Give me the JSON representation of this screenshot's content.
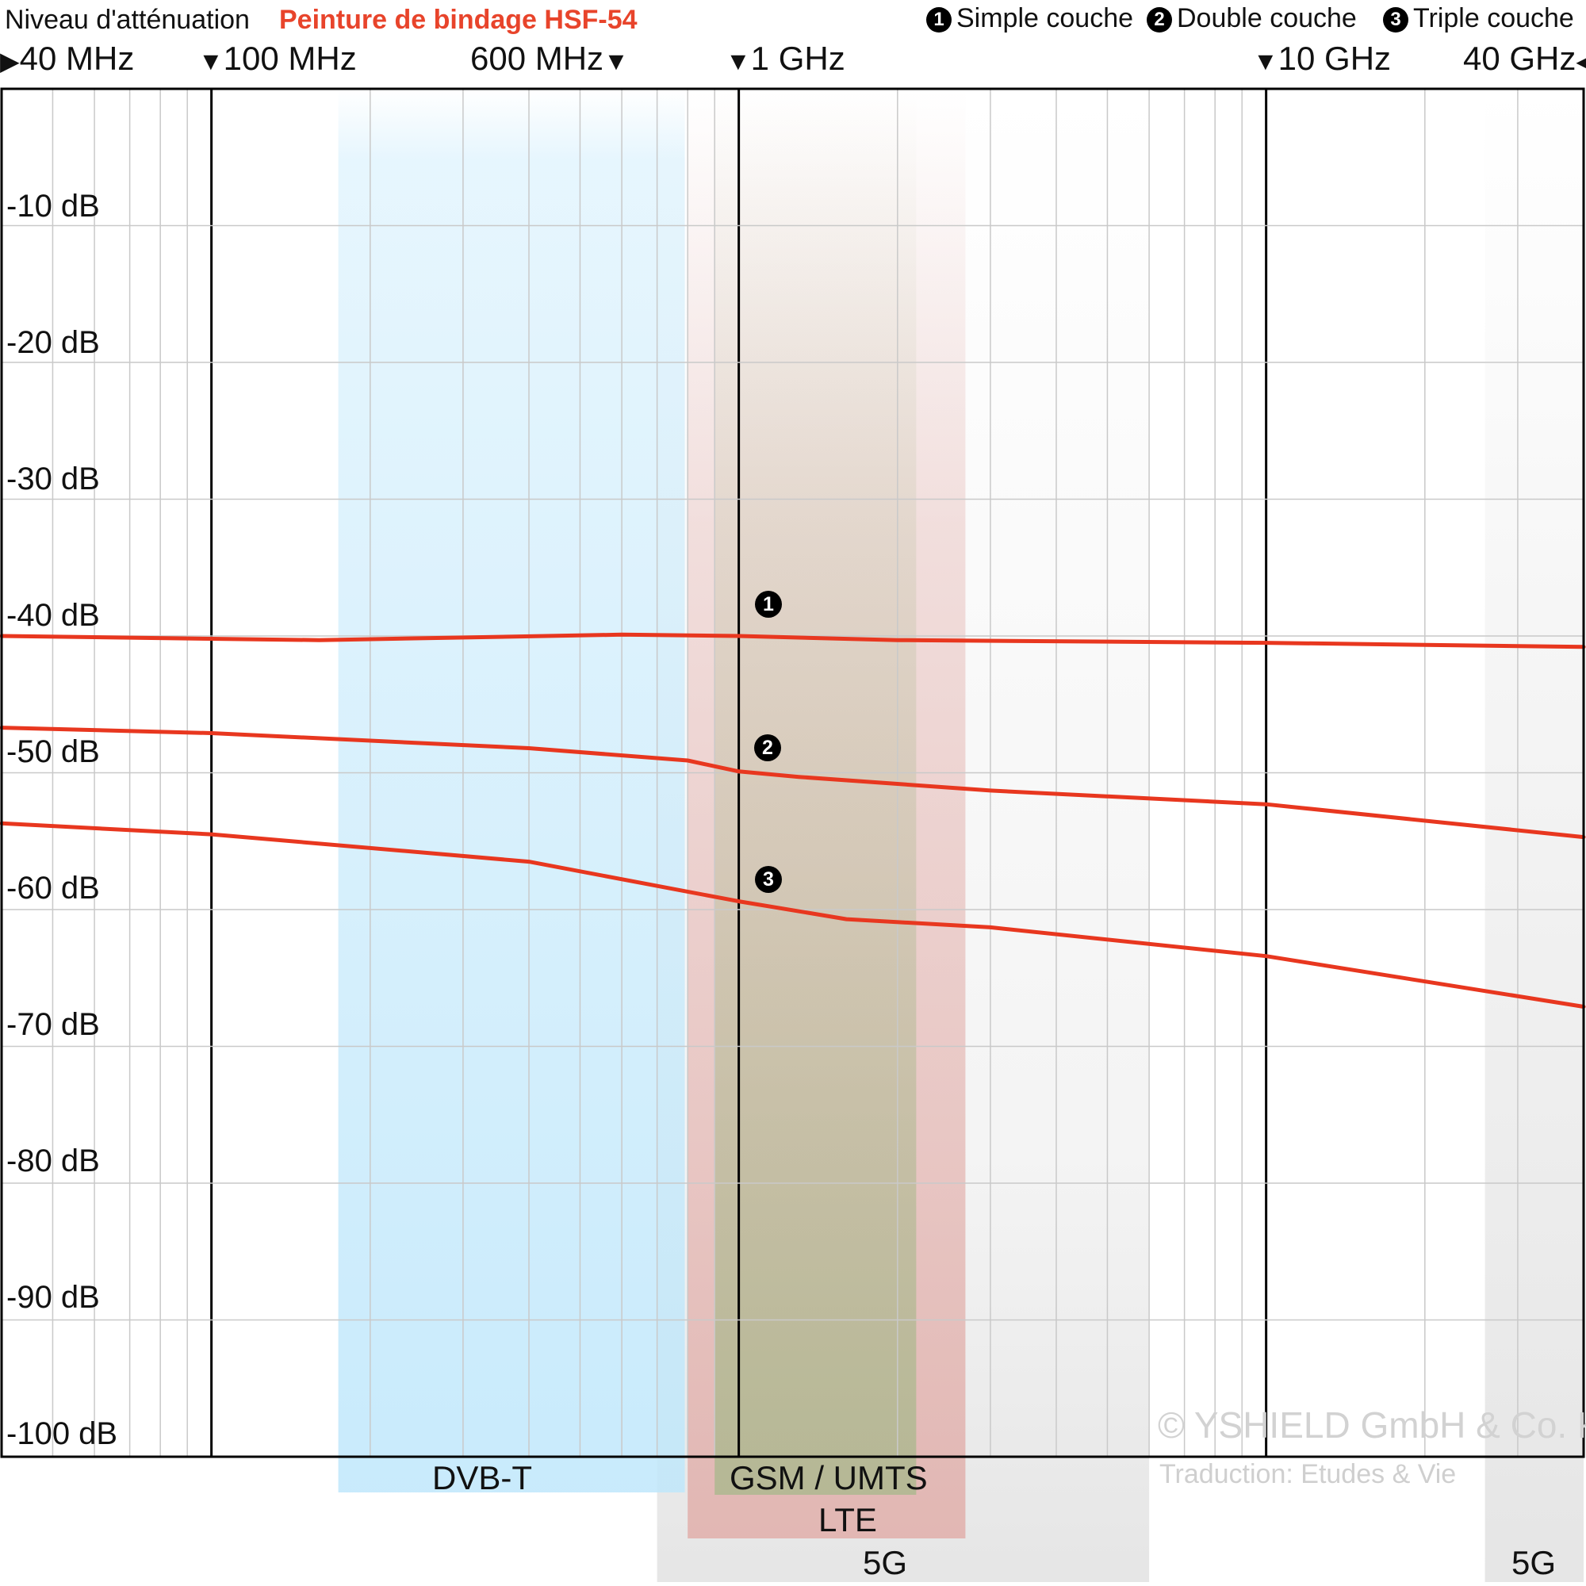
{
  "header": {
    "title": "Niveau d'atténuation",
    "product": "Peinture de bindage HSF-54"
  },
  "legend": [
    {
      "num": "1",
      "label": "Simple couche"
    },
    {
      "num": "2",
      "label": "Double couche"
    },
    {
      "num": "3",
      "label": "Triple couche"
    }
  ],
  "freq_labels": [
    "40 MHz",
    "100 MHz",
    "600 MHz",
    "1 GHz",
    "10 GHz",
    "40 GHz"
  ],
  "bands": {
    "dvbt": "DVB-T",
    "gsm": "GSM / UMTS",
    "lte": "LTE",
    "fiveg_mid": "5G",
    "fiveg_high": "5G"
  },
  "colors": {
    "curve": "#e8371f",
    "title_red": "#e8442b",
    "dvbt_band": "#bfe7fb",
    "lte_band": "#e0a7a2",
    "gsm_band": "#a6b88a",
    "fiveg_band": "#dddddd"
  },
  "watermark": {
    "copyright": "© YSHIELD GmbH & Co. KG",
    "translation": "Traduction: Etudes & Vie"
  },
  "chart_data": {
    "type": "line",
    "title": "Peinture de bindage HSF-54",
    "ylabel": "Niveau d'atténuation",
    "x_scale": "log",
    "xlim_mhz": [
      40,
      40000
    ],
    "ylim_db": [
      -100,
      0
    ],
    "major_x_ticks_mhz": [
      100,
      1000,
      10000
    ],
    "y_tick_labels": [
      "-10 dB",
      "-20 dB",
      "-30 dB",
      "-40 dB",
      "-50 dB",
      "-60 dB",
      "-70 dB",
      "-80 dB",
      "-90 dB",
      "-100 dB"
    ],
    "y_ticks": [
      -10,
      -20,
      -30,
      -40,
      -50,
      -60,
      -70,
      -80,
      -90,
      -100
    ],
    "grid": true,
    "series": [
      {
        "name": "Simple couche",
        "marker": "1",
        "x_mhz": [
          40,
          100,
          160,
          600,
          1000,
          2000,
          10000,
          40000
        ],
        "y_db": [
          -40,
          -40.2,
          -40.3,
          -39.9,
          -40,
          -40.3,
          -40.5,
          -40.8
        ]
      },
      {
        "name": "Double couche",
        "marker": "2",
        "x_mhz": [
          40,
          100,
          400,
          800,
          1000,
          1300,
          3000,
          10000,
          40000
        ],
        "y_db": [
          -46.7,
          -47.1,
          -48.2,
          -49.1,
          -49.9,
          -50.3,
          -51.3,
          -52.3,
          -54.7
        ]
      },
      {
        "name": "Triple couche",
        "marker": "3",
        "x_mhz": [
          40,
          100,
          400,
          1000,
          1600,
          3000,
          10000,
          40000
        ],
        "y_db": [
          -53.7,
          -54.5,
          -56.5,
          -59.4,
          -60.7,
          -61.3,
          -63.4,
          -67.1
        ]
      }
    ],
    "frequency_bands": [
      {
        "label": "DVB-T",
        "from_mhz": 174,
        "to_mhz": 790
      },
      {
        "label": "LTE",
        "from_mhz": 800,
        "to_mhz": 2690
      },
      {
        "label": "GSM / UMTS",
        "from_mhz": 900,
        "to_mhz": 2170
      },
      {
        "label": "5G",
        "from_mhz": 700,
        "to_mhz": 6000
      },
      {
        "label": "5G",
        "from_mhz": 26000,
        "to_mhz": 40000
      }
    ]
  }
}
